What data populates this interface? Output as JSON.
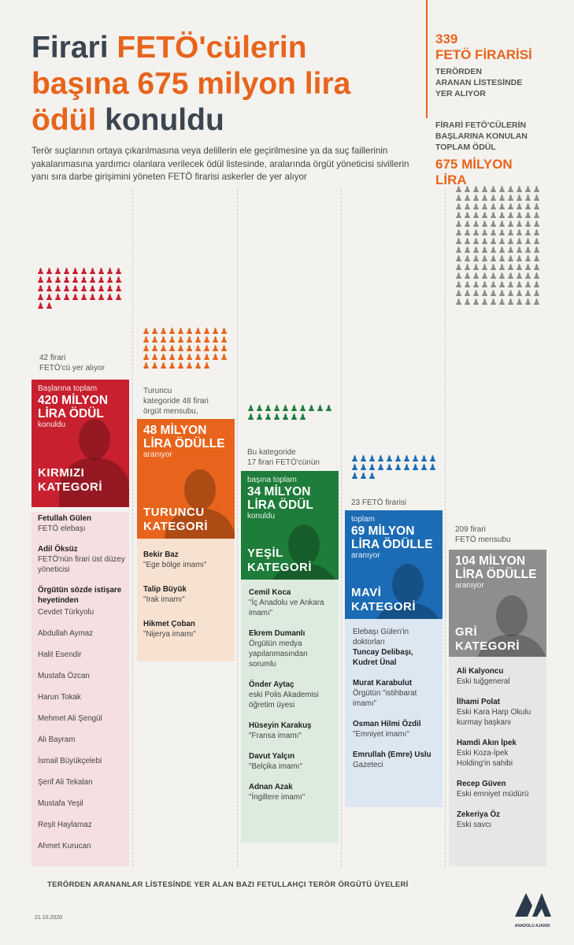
{
  "title": {
    "p1": "Firari ",
    "p2": "FETÖ'cülerin",
    "p3": "başına 675 milyon lira",
    "p4": "ödül",
    "p5": " konuldu"
  },
  "subtitle": "Terör suçlarının ortaya çıkarılmasına veya delillerin ele geçirilmesine ya da suç faillerinin yakalanmasına yardımcı olanlara verilecek ödül listesinde, aralarında örgüt yöneticisi sivillerin yanı sıra darbe girişimini yöneten FETÖ firarisi askerler de yer alıyor",
  "stats": {
    "count": "339",
    "label1": "FETÖ FİRARİSİ",
    "label2": "TERÖRDEN",
    "label3": "ARANAN LİSTESİNDE",
    "label4": "YER ALIYOR",
    "label5": "FİRARİ FETÖ'CÜLERİN",
    "label6": "BAŞLARINA KONULAN",
    "label7": "TOPLAM ÖDÜL",
    "total1": "675 MİLYON",
    "total2": "LİRA"
  },
  "colors": {
    "red": "#c8202f",
    "orange": "#e8641c",
    "green": "#1e7d3a",
    "blue": "#1c6cb5",
    "gray": "#8e8e8e"
  },
  "categories": [
    {
      "pre1": "42 firari",
      "pre2": "FETÖ'cü yer alıyor",
      "top_small": "Başlarına toplam",
      "amount1": "420 MİLYON",
      "amount2": "LİRA ÖDÜL",
      "after": "konuldu",
      "cat1": "KIRMIZI",
      "cat2": "KATEGORİ",
      "count": 42,
      "icon_color": "#c8202f"
    },
    {
      "pre1": "Turuncu",
      "pre2": "kategoride 48 firari",
      "pre3": "örgüt mensubu,",
      "amount1": "48 MİLYON",
      "amount2": "LİRA ÖDÜLLE",
      "after": "aranıyor",
      "cat1": "TURUNCU",
      "cat2": "KATEGORİ",
      "count": 48,
      "icon_color": "#e8641c"
    },
    {
      "pre1": "Bu kategoride",
      "pre2": "17 firari FETÖ'cünün",
      "top_small": "başına toplam",
      "amount1": "34 MİLYON",
      "amount2": "LİRA ÖDÜL",
      "after": "konuldu",
      "cat1": "YEŞİL",
      "cat2": "KATEGORİ",
      "count": 17,
      "icon_color": "#1e7d3a"
    },
    {
      "pre1": "23 FETÖ firarisi",
      "top_small": "toplam",
      "amount1": "69 MİLYON",
      "amount2": "LİRA ÖDÜLLE",
      "after": "aranıyor",
      "cat1": "MAVİ",
      "cat2": "KATEGORİ",
      "count": 23,
      "icon_color": "#1c6cb5"
    },
    {
      "pre1": "209 firari",
      "pre2": "FETÖ mensubu",
      "amount1": "104 MİLYON",
      "amount2": "LİRA ÖDÜLLE",
      "after": "aranıyor",
      "cat1": "GRİ",
      "cat2": "KATEGORİ",
      "count": 209,
      "icon_color": "#8e8e8e"
    }
  ],
  "lists": {
    "red": [
      {
        "name": "Fetullah Gülen",
        "desc": "FETÖ elebaşı"
      },
      {
        "name": "Adil Öksüz",
        "desc": "FETÖ'nün firari üst düzey yöneticisi"
      },
      {
        "name": "Örgütün sözde istişare heyetinden",
        "desc": ""
      }
    ],
    "red_plain": [
      "Cevdet Türkyolu",
      "Abdullah Aymaz",
      "Halit Esendir",
      "Mustafa Özcan",
      "Harun Tokak",
      "Mehmet Ali Şengül",
      "Ali Bayram",
      "İsmail Büyükçelebi",
      "Şerif Ali Tekalan",
      "Mustafa Yeşil",
      "Reşit Haylamaz",
      "Ahmet Kurucan"
    ],
    "orange": [
      {
        "name": "Bekir Baz",
        "desc": "\"Ege bölge imamı\""
      },
      {
        "name": "Talip Büyük",
        "desc": "\"Irak imamı\""
      },
      {
        "name": "Hikmet Çoban",
        "desc": "\"Nijerya imamı\""
      }
    ],
    "green": [
      {
        "name": "Cemil Koca",
        "desc": "\"İç Anadolu ve Ankara imamı\""
      },
      {
        "name": "Ekrem Dumanlı",
        "desc": "Örgütün medya yapılanmasından sorumlu"
      },
      {
        "name": "Önder Aytaç",
        "desc": "eski Polis Akademisi öğretim üyesi"
      },
      {
        "name": "Hüseyin Karakuş",
        "desc": "\"Fransa imamı\""
      },
      {
        "name": "Davut Yalçın",
        "desc": "\"Belçika imamı\""
      },
      {
        "name": "Adnan Azak",
        "desc": "\"İngiltere imamı\""
      }
    ],
    "blue_intro": "Elebaşı Gülen'in doktorları",
    "blue": [
      {
        "name": "Tuncay Delibaşı,",
        "desc": ""
      },
      {
        "name": "Kudret Ünal",
        "desc": ""
      },
      {
        "name": "Murat Karabulut",
        "desc": "Örgütün \"istihbarat imamı\""
      },
      {
        "name": "Osman Hilmi Özdil",
        "desc": "\"Emniyet imamı\""
      },
      {
        "name": "Emrullah (Emre) Uslu",
        "desc": "Gazeteci"
      }
    ],
    "gray": [
      {
        "name": "Ali Kalyoncu",
        "desc": "Eski tuğgeneral"
      },
      {
        "name": "İlhami Polat",
        "desc": "Eski Kara Harp Okulu kurmay başkanı"
      },
      {
        "name": "Hamdi Akın İpek",
        "desc": "Eski Koza-İpek Holding'in sahibi"
      },
      {
        "name": "Recep Güven",
        "desc": "Eski emniyet müdürü"
      },
      {
        "name": "Zekeriya Öz",
        "desc": "Eski savcı"
      }
    ]
  },
  "footer": "TERÖRDEN ARANANLAR LİSTESİNDE YER ALAN BAZI FETULLAHÇI TERÖR ÖRGÜTÜ ÜYELERİ",
  "date": "21.10.2020",
  "logo": {
    "icon": "anadolu-agency-logo",
    "text": "ANADOLU AJANSI"
  }
}
